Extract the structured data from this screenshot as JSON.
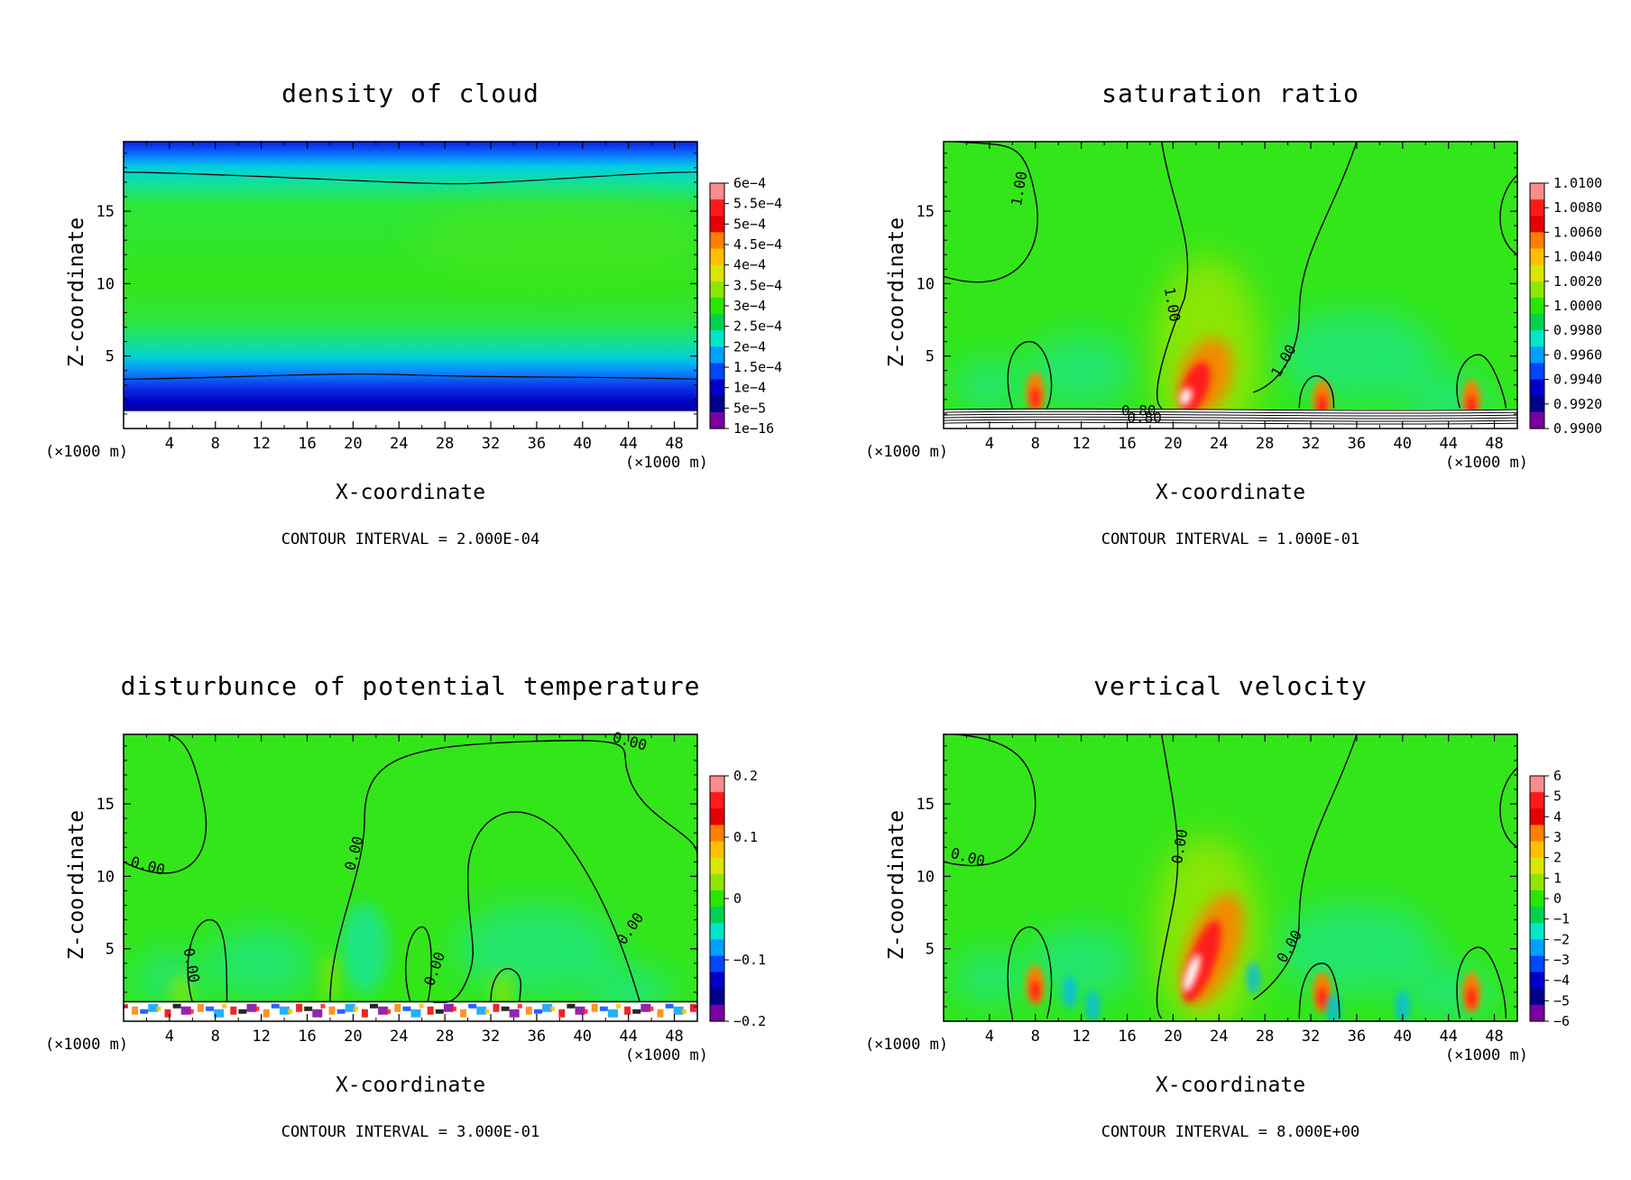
{
  "figure": {
    "x_unit": "(×1000 m)",
    "x_unit_left": "(×1000 m)"
  },
  "chart_data": [
    {
      "type": "heatmap",
      "title": "density of cloud",
      "xlabel": "X-coordinate",
      "ylabel": "Z-coordinate",
      "x_ticks": [
        "4",
        "8",
        "12",
        "16",
        "20",
        "24",
        "28",
        "32",
        "36",
        "40",
        "44",
        "48"
      ],
      "y_ticks": [
        "5",
        "10",
        "15"
      ],
      "xlim": [
        0,
        50
      ],
      "ylim": [
        0,
        19.8
      ],
      "contour_interval": "CONTOUR INTERVAL = 2.000E-04",
      "colorbar": [
        "6e−4",
        "5.5e−4",
        "5e−4",
        "4.5e−4",
        "4e−4",
        "3.5e−4",
        "3e−4",
        "2.5e−4",
        "2e−4",
        "1.5e−4",
        "1e−4",
        "5e−5",
        "1e−16"
      ],
      "contour_labels": [],
      "field": "cloud"
    },
    {
      "type": "heatmap",
      "title": "saturation ratio",
      "xlabel": "X-coordinate",
      "ylabel": "Z-coordinate",
      "x_ticks": [
        "4",
        "8",
        "12",
        "16",
        "20",
        "24",
        "28",
        "32",
        "36",
        "40",
        "44",
        "48"
      ],
      "y_ticks": [
        "5",
        "10",
        "15"
      ],
      "xlim": [
        0,
        50
      ],
      "ylim": [
        0,
        19.8
      ],
      "contour_interval": "CONTOUR INTERVAL = 1.000E-01",
      "colorbar": [
        "1.0100",
        "1.0080",
        "1.0060",
        "1.0040",
        "1.0020",
        "1.0000",
        "0.9980",
        "0.9960",
        "0.9940",
        "0.9920",
        "0.9900"
      ],
      "contour_labels": [
        "1.00",
        "1.00",
        "1.00",
        "0.80",
        "0.80"
      ],
      "field": "sat"
    },
    {
      "type": "heatmap",
      "title": "disturbunce of potential temperature",
      "xlabel": "X-coordinate",
      "ylabel": "Z-coordinate",
      "x_ticks": [
        "4",
        "8",
        "12",
        "16",
        "20",
        "24",
        "28",
        "32",
        "36",
        "40",
        "44",
        "48"
      ],
      "y_ticks": [
        "5",
        "10",
        "15"
      ],
      "xlim": [
        0,
        50
      ],
      "ylim": [
        0,
        19.8
      ],
      "contour_interval": "CONTOUR INTERVAL = 3.000E-01",
      "colorbar": [
        "0.2",
        "",
        "",
        "",
        "",
        "0.1",
        "",
        "",
        "",
        "",
        "0",
        "",
        "",
        "",
        "",
        "−0.1",
        "",
        "",
        "",
        "",
        "−0.2"
      ],
      "contour_labels": [
        "0.00",
        "0.00",
        "0.00",
        "0.00",
        "0.00",
        "0.00"
      ],
      "field": "theta"
    },
    {
      "type": "heatmap",
      "title": "vertical velocity",
      "xlabel": "X-coordinate",
      "ylabel": "Z-coordinate",
      "x_ticks": [
        "4",
        "8",
        "12",
        "16",
        "20",
        "24",
        "28",
        "32",
        "36",
        "40",
        "44",
        "48"
      ],
      "y_ticks": [
        "5",
        "10",
        "15"
      ],
      "xlim": [
        0,
        50
      ],
      "ylim": [
        0,
        19.8
      ],
      "contour_interval": "CONTOUR INTERVAL = 8.000E+00",
      "colorbar": [
        "6",
        "5",
        "4",
        "3",
        "2",
        "1",
        "0",
        "−1",
        "−2",
        "−3",
        "−4",
        "−5",
        "−6"
      ],
      "contour_labels": [
        "0.00",
        "0.00",
        "0.00"
      ],
      "field": "w"
    }
  ],
  "colors": {
    "colorbar": [
      "#ff8c8c",
      "#ff1a1a",
      "#e60000",
      "#ff7f00",
      "#ffbf00",
      "#d8e600",
      "#8fe600",
      "#28e600",
      "#00d250",
      "#00e6c8",
      "#00a0ff",
      "#0046ff",
      "#0000c8",
      "#00008c",
      "#7a00a0"
    ],
    "field_green": "#33e61a",
    "frame": "#000000"
  }
}
